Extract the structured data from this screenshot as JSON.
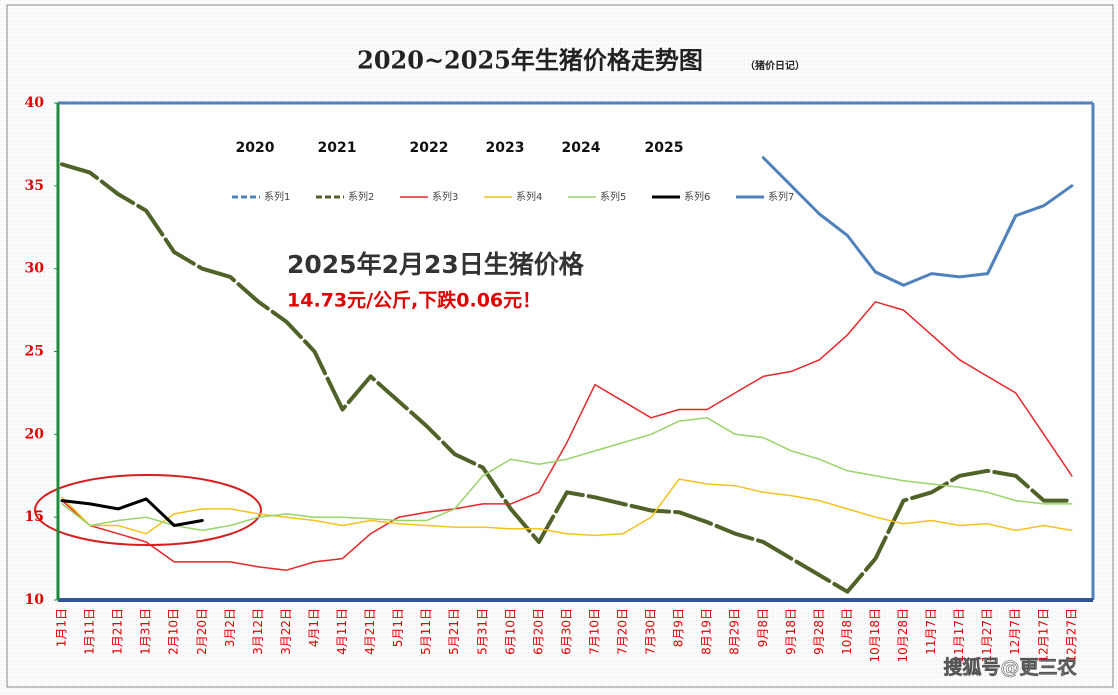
{
  "chart_data": {
    "type": "line",
    "title": "2020~2025年生猪价格走势图",
    "subtitle": "（猪价日记）",
    "annotation_title": "2025年2月23日生猪价格",
    "annotation_text": "14.73元/公斤,下跌0.06元！",
    "year_labels": [
      "2020",
      "2021",
      "2022",
      "2023",
      "2024",
      "2025"
    ],
    "watermark": "搜狐号@更三农",
    "categories": [
      "1月1日",
      "1月11日",
      "1月21日",
      "1月31日",
      "2月10日",
      "2月20日",
      "3月2日",
      "3月12日",
      "3月22日",
      "4月1日",
      "4月11日",
      "4月21日",
      "5月1日",
      "5月11日",
      "5月21日",
      "5月31日",
      "6月10日",
      "6月20日",
      "6月30日",
      "7月10日",
      "7月20日",
      "7月30日",
      "8月9日",
      "8月19日",
      "8月29日",
      "9月8日",
      "9月18日",
      "9月28日",
      "10月8日",
      "10月18日",
      "10月28日",
      "11月7日",
      "11月17日",
      "11月27日",
      "12月7日",
      "12月17日",
      "12月27日"
    ],
    "ylim": [
      10,
      40
    ],
    "yticks": [
      10,
      15,
      20,
      25,
      30,
      35,
      40
    ],
    "series": [
      {
        "name": "系列1",
        "color": "#4f81bd",
        "dash": true,
        "width": 3,
        "values": [
          null,
          null,
          null,
          null,
          null,
          null,
          null,
          null,
          null,
          null,
          null,
          null,
          null,
          null,
          null,
          null,
          null,
          null,
          null,
          null,
          null,
          null,
          null,
          null,
          null,
          null,
          null,
          null,
          null,
          29.8,
          29.0,
          null,
          null,
          29.7,
          33.2,
          null,
          null
        ]
      },
      {
        "name": "系列2",
        "color": "#4f6228",
        "dash": true,
        "width": 4,
        "values": [
          36.3,
          35.8,
          34.5,
          33.5,
          31.0,
          30.0,
          29.5,
          28.0,
          26.8,
          25.0,
          21.5,
          23.5,
          22.0,
          20.5,
          18.8,
          18.0,
          15.5,
          13.5,
          16.5,
          16.2,
          15.8,
          15.4,
          15.3,
          14.7,
          14.0,
          13.5,
          12.5,
          11.5,
          10.5,
          12.5,
          16.0,
          16.5,
          17.5,
          17.8,
          17.5,
          16.0,
          16.0
        ]
      },
      {
        "name": "系列3",
        "color": "#e8262a",
        "dash": false,
        "width": 1.5,
        "values": [
          16.0,
          14.5,
          14.0,
          13.5,
          12.3,
          12.3,
          12.3,
          12.0,
          11.8,
          12.3,
          12.5,
          14.0,
          15.0,
          15.3,
          15.5,
          15.8,
          15.8,
          16.5,
          19.5,
          23.0,
          22.0,
          21.0,
          21.5,
          21.5,
          22.5,
          23.5,
          23.8,
          24.5,
          26.0,
          28.0,
          27.5,
          26.0,
          24.5,
          23.5,
          22.5,
          20.0,
          17.5
        ]
      },
      {
        "name": "系列4",
        "color": "#f5c21b",
        "dash": false,
        "width": 1.5,
        "values": [
          16.2,
          14.5,
          14.5,
          14.0,
          15.2,
          15.5,
          15.5,
          15.2,
          15.0,
          14.8,
          14.5,
          14.8,
          14.6,
          14.5,
          14.4,
          14.4,
          14.3,
          14.3,
          14.0,
          13.9,
          14.0,
          15.0,
          17.3,
          17.0,
          16.9,
          16.5,
          16.3,
          16.0,
          15.5,
          15.0,
          14.6,
          14.8,
          14.5,
          14.6,
          14.2,
          14.5,
          14.2
        ]
      },
      {
        "name": "系列5",
        "color": "#9bd36b",
        "dash": false,
        "width": 1.5,
        "values": [
          15.8,
          14.5,
          14.8,
          15.0,
          14.5,
          14.2,
          14.5,
          15.0,
          15.2,
          15.0,
          15.0,
          14.9,
          14.8,
          14.8,
          15.5,
          17.5,
          18.5,
          18.2,
          18.5,
          19.0,
          19.5,
          20.0,
          20.8,
          21.0,
          20.0,
          19.8,
          19.0,
          18.5,
          17.8,
          17.5,
          17.2,
          17.0,
          16.8,
          16.5,
          16.0,
          15.8,
          15.8
        ]
      },
      {
        "name": "系列6",
        "color": "#000000",
        "dash": false,
        "width": 3,
        "values": [
          16.0,
          15.8,
          15.5,
          16.1,
          14.5,
          14.8,
          null,
          null,
          null,
          null,
          null,
          null,
          null,
          null,
          null,
          null,
          null,
          null,
          null,
          null,
          null,
          null,
          null,
          null,
          null,
          null,
          null,
          null,
          null,
          null,
          null,
          null,
          null,
          null,
          null,
          null,
          null
        ]
      },
      {
        "name": "系列7",
        "color": "#4f81bd",
        "dash": false,
        "width": 3,
        "values": [
          null,
          null,
          null,
          null,
          null,
          null,
          null,
          null,
          null,
          null,
          null,
          null,
          null,
          null,
          null,
          null,
          null,
          null,
          null,
          null,
          null,
          null,
          null,
          null,
          null,
          36.7,
          35.0,
          33.3,
          32.0,
          29.8,
          29.0,
          29.7,
          29.5,
          29.7,
          33.2,
          33.8,
          35.0
        ]
      }
    ]
  }
}
